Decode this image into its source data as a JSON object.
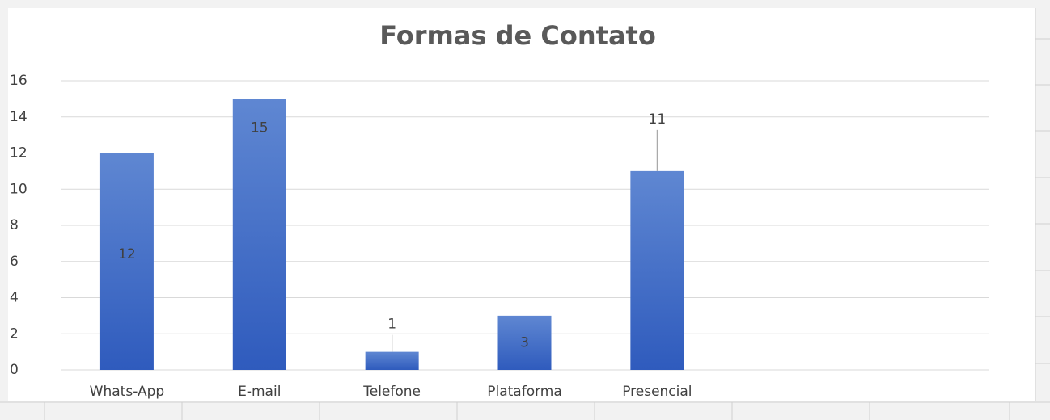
{
  "chart_data": {
    "type": "bar",
    "title": "Formas de Contato",
    "categories": [
      "Whats-App",
      "E-mail",
      "Telefone",
      "Plataforma",
      "Presencial",
      null,
      null
    ],
    "values": [
      12,
      15,
      1,
      3,
      11,
      null,
      null
    ],
    "color": "#4472c4",
    "ylim": [
      0,
      16
    ],
    "yticks": [
      0,
      2,
      4,
      6,
      8,
      10,
      12,
      14,
      16
    ],
    "grid": true
  }
}
